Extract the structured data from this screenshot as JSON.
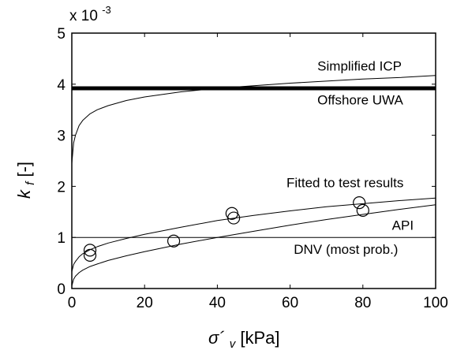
{
  "chart_data": {
    "type": "line",
    "xlim": [
      0,
      100
    ],
    "ylim": [
      0,
      5
    ],
    "x_ticks": [
      "0",
      "20",
      "40",
      "60",
      "80",
      "100"
    ],
    "y_ticks": [
      "0",
      "1",
      "2",
      "3",
      "4",
      "5"
    ],
    "y_multiplier": {
      "base": "x 10",
      "exponent": "-3"
    },
    "xlabel": {
      "symbol": "σ´",
      "subscript": "v",
      "unit": " [kPa]"
    },
    "ylabel": {
      "symbol": "k",
      "subscript": "f",
      "unit": " [-]"
    },
    "grid": false,
    "series": [
      {
        "name": "Simplified ICP",
        "style": "thin",
        "x": [
          0,
          0.5,
          1,
          2,
          3,
          5,
          7,
          10,
          15,
          20,
          30,
          40,
          50,
          60,
          70,
          80,
          90,
          100
        ],
        "y": [
          2.45,
          2.85,
          3.0,
          3.19,
          3.29,
          3.42,
          3.5,
          3.58,
          3.68,
          3.75,
          3.85,
          3.92,
          3.97,
          4.02,
          4.06,
          4.1,
          4.13,
          4.17
        ]
      },
      {
        "name": "Offshore UWA",
        "style": "thick",
        "x": [
          0,
          100
        ],
        "y": [
          3.92,
          3.92
        ]
      },
      {
        "name": "Fitted to test results",
        "style": "thin",
        "x": [
          0,
          0.5,
          1,
          2,
          3,
          5,
          7,
          10,
          15,
          20,
          30,
          40,
          50,
          60,
          70,
          80,
          90,
          100
        ],
        "y": [
          0.33,
          0.47,
          0.53,
          0.62,
          0.68,
          0.76,
          0.82,
          0.89,
          0.98,
          1.06,
          1.2,
          1.33,
          1.43,
          1.52,
          1.6,
          1.66,
          1.72,
          1.77
        ]
      },
      {
        "name": "API",
        "style": "thin",
        "x": [
          0,
          100
        ],
        "y": [
          1.0,
          1.0
        ]
      },
      {
        "name": "DNV (most prob.)",
        "style": "thin",
        "x": [
          0,
          0.5,
          1,
          2,
          3,
          5,
          7,
          10,
          15,
          20,
          30,
          40,
          50,
          60,
          70,
          80,
          90,
          100
        ],
        "y": [
          0.05,
          0.18,
          0.24,
          0.31,
          0.36,
          0.43,
          0.48,
          0.55,
          0.64,
          0.72,
          0.87,
          1.0,
          1.12,
          1.24,
          1.35,
          1.45,
          1.55,
          1.64
        ]
      }
    ],
    "test_results": {
      "x": [
        5,
        5,
        28,
        44,
        44.5,
        79,
        80
      ],
      "y": [
        0.65,
        0.75,
        0.93,
        1.47,
        1.38,
        1.68,
        1.53
      ]
    },
    "annotations": [
      {
        "text": "Simplified ICP",
        "x": 67.5,
        "y": 4.27
      },
      {
        "text": "Offshore UWA",
        "x": 67.5,
        "y": 3.6
      },
      {
        "text": "Fitted to test results",
        "x": 59,
        "y": 1.98
      },
      {
        "text": "API",
        "x": 88,
        "y": 1.15
      },
      {
        "text": "DNV (most prob.)",
        "x": 61,
        "y": 0.68
      }
    ]
  }
}
